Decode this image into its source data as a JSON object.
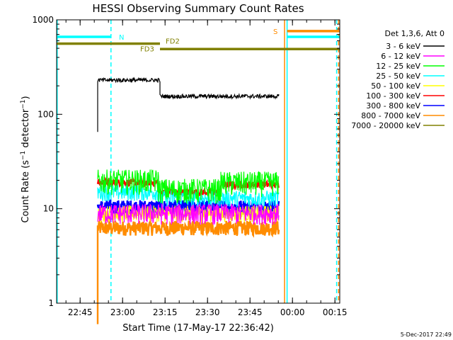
{
  "chart_data": {
    "type": "line",
    "title": "HESSI Observing Summary Count Rates",
    "xlabel": "Start Time (17-May-17 22:36:42)",
    "ylabel": "Count Rate (s⁻¹ detector⁻¹)",
    "y_scale": "log",
    "ylim": [
      1,
      1000
    ],
    "xlim_minutes": [
      0,
      100
    ],
    "x_ticks": [
      "22:45",
      "23:00",
      "23:15",
      "23:30",
      "23:45",
      "00:00",
      "00:15"
    ],
    "x_tick_minutes": [
      8.3,
      23.3,
      38.3,
      53.3,
      68.3,
      83.3,
      98.3
    ],
    "y_ticks": [
      "1",
      "10",
      "100",
      "1000"
    ],
    "y_tick_values": [
      1,
      10,
      100,
      1000
    ],
    "legend_title": "Det 1,3,6, Att 0",
    "legend_position": "right",
    "series": [
      {
        "name": "3 - 6 keV",
        "color": "#000000",
        "segments": [
          {
            "x0": 14.5,
            "x1": 36.5,
            "value": 230,
            "noise": 0.05
          },
          {
            "x0": 36.5,
            "x1": 78.5,
            "value": 155,
            "noise": 0.05
          }
        ],
        "spike_start": 65
      },
      {
        "name": "6 - 12 keV",
        "color": "#ff00ff",
        "segments": [
          {
            "x0": 14.5,
            "x1": 78.5,
            "value": 9,
            "noise": 0.25
          }
        ]
      },
      {
        "name": "12 - 25 keV",
        "color": "#00ff00",
        "segments": [
          {
            "x0": 14.5,
            "x1": 36.0,
            "value": 20,
            "noise": 0.3
          },
          {
            "x0": 36.0,
            "x1": 58.0,
            "value": 16,
            "noise": 0.3
          },
          {
            "x0": 58.0,
            "x1": 78.5,
            "value": 19,
            "noise": 0.3
          }
        ]
      },
      {
        "name": "25 - 50 keV",
        "color": "#00ffff",
        "segments": [
          {
            "x0": 14.5,
            "x1": 36.0,
            "value": 15,
            "noise": 0.2
          },
          {
            "x0": 36.0,
            "x1": 78.5,
            "value": 13,
            "noise": 0.2
          }
        ]
      },
      {
        "name": "50 - 100 keV",
        "color": "#ffff00",
        "segments": [
          {
            "x0": 14.5,
            "x1": 78.5,
            "value": 9,
            "noise": 0.2
          }
        ]
      },
      {
        "name": "100 - 300 keV",
        "color": "#ff0000",
        "segments": [
          {
            "x0": 14.5,
            "x1": 36.0,
            "value": 19,
            "noise": 0.08
          },
          {
            "x0": 36.0,
            "x1": 58.0,
            "value": 15,
            "noise": 0.08
          },
          {
            "x0": 58.0,
            "x1": 78.5,
            "value": 18,
            "noise": 0.08
          }
        ]
      },
      {
        "name": "300 - 800 keV",
        "color": "#0000ff",
        "segments": [
          {
            "x0": 14.5,
            "x1": 78.5,
            "value": 10.5,
            "noise": 0.18
          }
        ]
      },
      {
        "name": "800 - 7000 keV",
        "color": "#ff8c00",
        "segments": [
          {
            "x0": 14.5,
            "x1": 78.5,
            "value": 6.3,
            "noise": 0.18
          }
        ],
        "spike_start": 0.6
      },
      {
        "name": "7000 - 20000 keV",
        "color": "#808000",
        "segments": []
      }
    ],
    "vertical_lines": [
      {
        "x": 0.2,
        "color": "#00ffff",
        "style": "solid"
      },
      {
        "x": 19.2,
        "color": "#00ffff",
        "style": "dashed"
      },
      {
        "x": 80.5,
        "color": "#ff8c00",
        "style": "solid"
      },
      {
        "x": 81.4,
        "color": "#00ffff",
        "style": "solid"
      },
      {
        "x": 98.9,
        "color": "#00ffff",
        "style": "dashed"
      },
      {
        "x": 99.6,
        "color": "#ff8c00",
        "style": "dashed"
      }
    ],
    "annotations": [
      {
        "label": "N",
        "color": "#00ffff",
        "x0": 0,
        "x1": 19.2,
        "y": 660
      },
      {
        "label": "FD2",
        "color": "#808000",
        "x0": 0,
        "x1": 36.5,
        "y": 560
      },
      {
        "label": "FD3",
        "color": "#808000",
        "x0": 36.5,
        "x1": 100,
        "y": 490
      },
      {
        "label": "S",
        "color": "#ff8c00",
        "x0": 81.4,
        "x1": 100,
        "y": 760
      },
      {
        "label": "",
        "color": "#00ffff",
        "x0": 81.4,
        "x1": 100,
        "y": 660
      }
    ],
    "footer_date": "5-Dec-2017 22:49"
  }
}
